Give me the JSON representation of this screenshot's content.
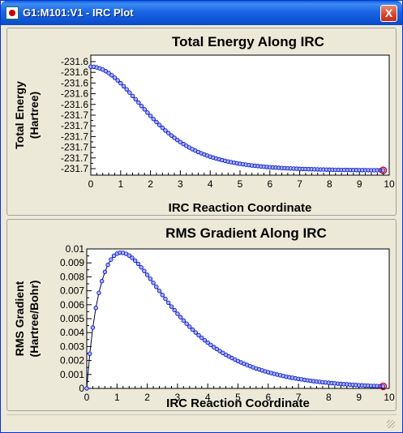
{
  "window": {
    "title": "G1:M101:V1 - IRC Plot",
    "close_label": "X"
  },
  "chart_data": [
    {
      "type": "line",
      "title": "Total Energy Along IRC",
      "xlabel": "IRC Reaction Coordinate",
      "ylabel": [
        "Total Energy",
        "(Hartree)"
      ],
      "xlim": [
        0,
        10
      ],
      "xticks": [
        "0",
        "1",
        "2",
        "3",
        "4",
        "5",
        "6",
        "7",
        "8",
        "9",
        "10"
      ],
      "yticks": [
        "-231.6",
        "-231.6",
        "-231.6",
        "-231.6",
        "-231.6",
        "-231.7",
        "-231.7",
        "-231.7",
        "-231.7",
        "-231.7",
        "-231.7"
      ],
      "series_color": "#0000CC",
      "marker_fill": "#9DB3F5",
      "highlight_color": "#CC0000",
      "step": 0.1,
      "x": [
        0,
        0.1,
        0.2,
        0.3,
        0.4,
        0.5,
        0.6,
        0.7,
        0.8,
        0.9,
        1,
        1.1,
        1.2,
        1.3,
        1.4,
        1.5,
        1.6,
        1.7,
        1.8,
        1.9,
        2,
        2.1,
        2.2,
        2.3,
        2.4,
        2.5,
        2.6,
        2.7,
        2.8,
        2.9,
        3,
        3.1,
        3.2,
        3.3,
        3.4,
        3.5,
        3.6,
        3.7,
        3.8,
        3.9,
        4,
        4.1,
        4.2,
        4.3,
        4.4,
        4.5,
        4.6,
        4.7,
        4.8,
        4.9,
        5,
        5.1,
        5.2,
        5.3,
        5.4,
        5.5,
        5.6,
        5.7,
        5.8,
        5.9,
        6,
        6.1,
        6.2,
        6.3,
        6.4,
        6.5,
        6.6,
        6.7,
        6.8,
        6.9,
        7,
        7.1,
        7.2,
        7.3,
        7.4,
        7.5,
        7.6,
        7.7,
        7.8,
        7.9,
        8,
        8.1,
        8.2,
        8.3,
        8.4,
        8.5,
        8.6,
        8.7,
        8.8,
        8.9,
        9,
        9.1,
        9.2,
        9.3,
        9.4,
        9.5,
        9.6,
        9.7,
        9.8
      ],
      "values": [
        0.8993,
        0.8977,
        0.8928,
        0.8848,
        0.8738,
        0.8599,
        0.8432,
        0.8242,
        0.8029,
        0.7796,
        0.7546,
        0.7282,
        0.7007,
        0.6723,
        0.6432,
        0.6138,
        0.5843,
        0.5548,
        0.5256,
        0.4968,
        0.4686,
        0.4412,
        0.4146,
        0.3889,
        0.3643,
        0.3407,
        0.3182,
        0.2968,
        0.2766,
        0.2575,
        0.2394,
        0.2225,
        0.2066,
        0.1917,
        0.1778,
        0.1648,
        0.1527,
        0.1414,
        0.1309,
        0.1211,
        0.112,
        0.1035,
        0.0956,
        0.0883,
        0.0815,
        0.0751,
        0.0692,
        0.0638,
        0.0587,
        0.0539,
        0.0495,
        0.0455,
        0.0417,
        0.0381,
        0.0348,
        0.0318,
        0.029,
        0.0264,
        0.0239,
        0.0216,
        0.0195,
        0.0176,
        0.0158,
        0.0141,
        0.0125,
        0.0111,
        0.0097,
        0.0084,
        0.0072,
        0.0061,
        0.0051,
        0.0041,
        0.0032,
        0.0024,
        0.0016,
        0.0009,
        0.0002,
        -0.0005,
        -0.0011,
        -0.0016,
        -0.0022,
        -0.0027,
        -0.0031,
        -0.0036,
        -0.004,
        -0.0044,
        -0.0047,
        -0.0051,
        -0.0054,
        -0.0057,
        -0.006,
        -0.0062,
        -0.0065,
        -0.0067,
        -0.0069,
        -0.0071,
        -0.0073,
        -0.0075,
        -0.0077
      ],
      "ylim": [
        -0.05,
        1.0
      ]
    },
    {
      "type": "line",
      "title": "RMS Gradient Along IRC",
      "xlabel": "IRC Reaction Coordinate",
      "ylabel": [
        "RMS Gradient",
        "(Hartree/Bohr)"
      ],
      "xlim": [
        0,
        10
      ],
      "ylim": [
        0,
        0.01
      ],
      "xticks": [
        "0",
        "1",
        "2",
        "3",
        "4",
        "5",
        "6",
        "7",
        "8",
        "9",
        "10"
      ],
      "yticks": [
        "0",
        "0.001",
        "0.002",
        "0.003",
        "0.004",
        "0.005",
        "0.006",
        "0.007",
        "0.008",
        "0.009",
        "0.01"
      ],
      "series_color": "#0000CC",
      "marker_fill": "#9DB3F5",
      "highlight_color": "#CC0000",
      "x": [
        0,
        0.1,
        0.2,
        0.3,
        0.4,
        0.5,
        0.6,
        0.7,
        0.8,
        0.9,
        1,
        1.1,
        1.2,
        1.3,
        1.4,
        1.5,
        1.6,
        1.7,
        1.8,
        1.9,
        2,
        2.1,
        2.2,
        2.3,
        2.4,
        2.5,
        2.6,
        2.7,
        2.8,
        2.9,
        3,
        3.1,
        3.2,
        3.3,
        3.4,
        3.5,
        3.6,
        3.7,
        3.8,
        3.9,
        4,
        4.1,
        4.2,
        4.3,
        4.4,
        4.5,
        4.6,
        4.7,
        4.8,
        4.9,
        5,
        5.1,
        5.2,
        5.3,
        5.4,
        5.5,
        5.6,
        5.7,
        5.8,
        5.9,
        6,
        6.1,
        6.2,
        6.3,
        6.4,
        6.5,
        6.6,
        6.7,
        6.8,
        6.9,
        7,
        7.1,
        7.2,
        7.3,
        7.4,
        7.5,
        7.6,
        7.7,
        7.8,
        7.9,
        8,
        8.1,
        8.2,
        8.3,
        8.4,
        8.5,
        8.6,
        8.7,
        8.8,
        8.9,
        9,
        9.1,
        9.2,
        9.3,
        9.4,
        9.5,
        9.6,
        9.7,
        9.8
      ],
      "values": [
        0,
        0.00249,
        0.00436,
        0.00577,
        0.00685,
        0.00769,
        0.00835,
        0.00886,
        0.00924,
        0.00951,
        0.00966,
        0.00973,
        0.00972,
        0.00965,
        0.00953,
        0.00936,
        0.00916,
        0.00893,
        0.00868,
        0.00842,
        0.00814,
        0.00786,
        0.00757,
        0.00728,
        0.00699,
        0.0067,
        0.00642,
        0.00614,
        0.00587,
        0.00561,
        0.00535,
        0.00511,
        0.00487,
        0.00464,
        0.00442,
        0.00421,
        0.00401,
        0.00381,
        0.00363,
        0.00345,
        0.00328,
        0.00312,
        0.00296,
        0.00282,
        0.00268,
        0.00254,
        0.00241,
        0.00229,
        0.00218,
        0.00207,
        0.00196,
        0.00186,
        0.00177,
        0.00168,
        0.00159,
        0.00151,
        0.00143,
        0.00136,
        0.00129,
        0.00122,
        0.00116,
        0.0011,
        0.00104,
        0.00099,
        0.00094,
        0.00089,
        0.00084,
        0.0008,
        0.00076,
        0.00072,
        0.00068,
        0.00065,
        0.00061,
        0.00058,
        0.00055,
        0.00052,
        0.00049,
        0.00047,
        0.00044,
        0.00042,
        0.0004,
        0.00038,
        0.00036,
        0.00034,
        0.00032,
        0.0003,
        0.00029,
        0.00027,
        0.00026,
        0.00024,
        0.00023,
        0.00022,
        0.00021,
        0.0002,
        0.00018,
        0.00018,
        0.00017,
        0.00016,
        0.00015
      ]
    }
  ]
}
